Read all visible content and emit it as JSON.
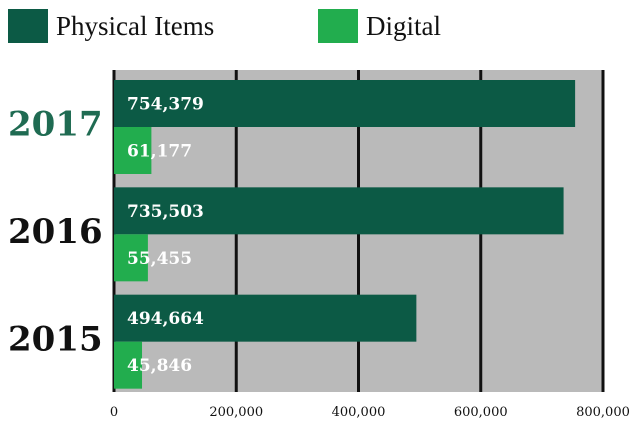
{
  "legend": {
    "physical_label": "Physical Items",
    "digital_label": "Digital"
  },
  "colors": {
    "physical": "#0c5a45",
    "digital": "#22ad4e",
    "plot_bg": "#bababa",
    "grid": "#111111",
    "year_highlight": "#1f6b52",
    "year_default": "#111111"
  },
  "chart_data": {
    "type": "bar",
    "orientation": "horizontal",
    "categories": [
      "2017",
      "2016",
      "2015"
    ],
    "series": [
      {
        "name": "Physical Items",
        "values": [
          754379,
          735503,
          494664
        ],
        "labels": [
          "754,379",
          "735,503",
          "494,664"
        ]
      },
      {
        "name": "Digital",
        "values": [
          61177,
          55455,
          45846
        ],
        "labels": [
          "61,177",
          "55,455",
          "45,846"
        ]
      }
    ],
    "xlim": [
      0,
      800000
    ],
    "xticks": [
      0,
      200000,
      400000,
      600000,
      800000
    ],
    "xtick_labels": [
      "0",
      "200,000",
      "400,000",
      "600,000",
      "800,000"
    ],
    "highlight_category": "2017",
    "grid": true,
    "legend_position": "top"
  }
}
